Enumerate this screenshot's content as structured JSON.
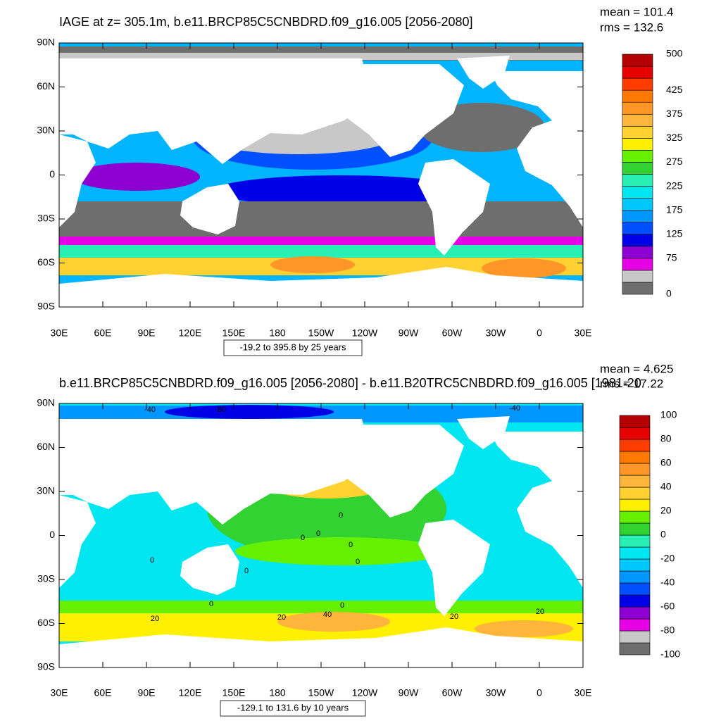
{
  "panels": [
    {
      "title": "IAGE at z= 305.1m, b.e11.BRCP85C5CNBDRD.f09_g16.005 [2056-2080]",
      "stats": [
        "mean = 101.4",
        "rms = 132.6"
      ],
      "lat_labels": [
        "90N",
        "60N",
        "30N",
        "0",
        "30S",
        "60S",
        "90S"
      ],
      "lon_labels": [
        "30E",
        "60E",
        "90E",
        "120E",
        "150E",
        "180",
        "150W",
        "120W",
        "90W",
        "60W",
        "30W",
        "0",
        "30E"
      ],
      "range_note": "-19.2 to 395.8 by 25 years",
      "colorbar": {
        "range": [
          0,
          500
        ],
        "labels": [
          500,
          425,
          375,
          325,
          275,
          225,
          175,
          125,
          75,
          0
        ],
        "colors": [
          "#6e6e6e",
          "#c8c8c8",
          "#e600e6",
          "#8c00d2",
          "#0000e6",
          "#0050ff",
          "#0096ff",
          "#00c8ff",
          "#00e6f0",
          "#28f0b4",
          "#32d232",
          "#64f000",
          "#fff000",
          "#ffd232",
          "#ffb43c",
          "#ff9628",
          "#ff7800",
          "#ff3c00",
          "#e60000",
          "#b40000"
        ]
      }
    },
    {
      "title": "b.e11.BRCP85C5CNBDRD.f09_g16.005 [2056-2080] - b.e11.B20TRC5CNBDRD.f09_g16.005 [1981-20",
      "stats": [
        "mean = 4.625",
        "rms = 17.22"
      ],
      "lat_labels": [
        "90N",
        "60N",
        "30N",
        "0",
        "30S",
        "60S",
        "90S"
      ],
      "lon_labels": [
        "30E",
        "60E",
        "90E",
        "120E",
        "150E",
        "180",
        "150W",
        "120W",
        "90W",
        "60W",
        "30W",
        "0",
        "30E"
      ],
      "range_note": "-129.1 to 131.6 by 10 years",
      "colorbar": {
        "range": [
          -100,
          100
        ],
        "labels": [
          100,
          80,
          60,
          40,
          20,
          0,
          -20,
          -40,
          -60,
          -80,
          -100
        ],
        "colors": [
          "#6e6e6e",
          "#c8c8c8",
          "#e600e6",
          "#8c00d2",
          "#0000e6",
          "#0050ff",
          "#0096ff",
          "#00c8ff",
          "#00e6f0",
          "#28f0b4",
          "#32d232",
          "#64f000",
          "#fff000",
          "#ffd232",
          "#ffb43c",
          "#ff9628",
          "#ff7800",
          "#ff3c00",
          "#e60000",
          "#b40000"
        ],
        "contour_labels": [
          -40,
          -80,
          -40,
          0,
          0,
          0,
          0,
          0,
          0,
          0,
          0,
          0,
          20,
          20,
          40,
          20,
          20
        ]
      }
    }
  ]
}
